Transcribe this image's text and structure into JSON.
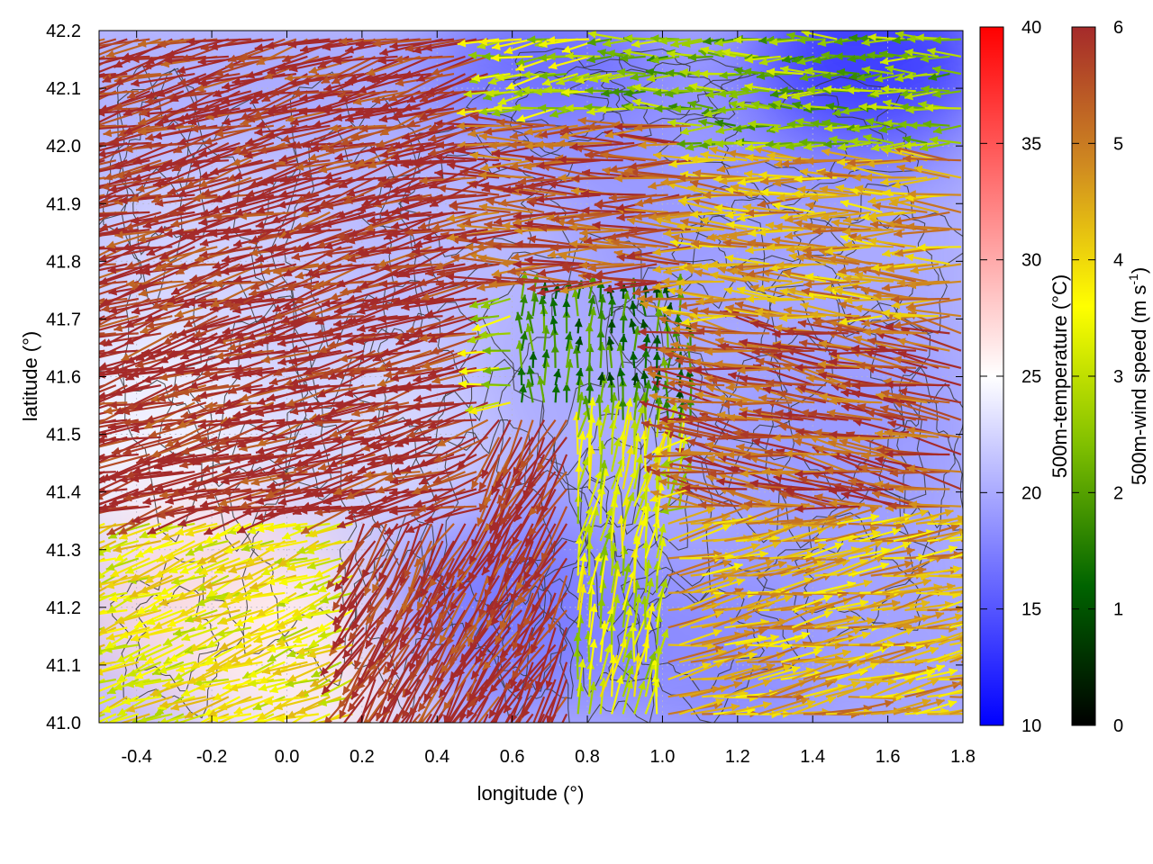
{
  "chart_data": {
    "type": "heatmap",
    "subtype": "vector-field-over-temperature-map",
    "xlabel": "longitude (°)",
    "ylabel": "latitude (°)",
    "xlim": [
      -0.5,
      1.8
    ],
    "ylim": [
      41.0,
      42.2
    ],
    "xticks": [
      "-0.4",
      "-0.2",
      "0.0",
      "0.2",
      "0.4",
      "0.6",
      "0.8",
      "1.0",
      "1.2",
      "1.4",
      "1.6",
      "1.8"
    ],
    "yticks": [
      "41.0",
      "41.1",
      "41.2",
      "41.3",
      "41.4",
      "41.5",
      "41.6",
      "41.7",
      "41.8",
      "41.9",
      "42.0",
      "42.1",
      "42.2"
    ],
    "grid": true,
    "temperature_colorbar": {
      "label": "500m-temperature (°C)",
      "range": [
        10,
        40
      ],
      "ticks": [
        "10",
        "15",
        "20",
        "25",
        "30",
        "35",
        "40"
      ],
      "colors": [
        "#0000ff",
        "#ffffff",
        "#ff0000"
      ]
    },
    "wind_colorbar": {
      "label_main": "500m-wind speed (m s",
      "label_sup": "-1",
      "label_end": ")",
      "range": [
        0,
        6
      ],
      "ticks": [
        "0",
        "1",
        "2",
        "3",
        "4",
        "5",
        "6"
      ],
      "colors": [
        "#000000",
        "#006400",
        "#7fbf00",
        "#ffff00",
        "#d08b20",
        "#a52a2a"
      ]
    },
    "temperature_regions": [
      {
        "lon": -0.5,
        "lat": 42.2,
        "temp": 20.5
      },
      {
        "lon": -0.2,
        "lat": 41.8,
        "temp": 22.5
      },
      {
        "lon": -0.4,
        "lat": 41.5,
        "temp": 24.5
      },
      {
        "lon": -0.2,
        "lat": 41.2,
        "temp": 27
      },
      {
        "lon": 0.1,
        "lat": 41.1,
        "temp": 26
      },
      {
        "lon": 0.3,
        "lat": 41.5,
        "temp": 23
      },
      {
        "lon": 0.6,
        "lat": 41.2,
        "temp": 17
      },
      {
        "lon": 0.8,
        "lat": 41.6,
        "temp": 20
      },
      {
        "lon": 0.7,
        "lat": 42.1,
        "temp": 16
      },
      {
        "lon": 1.0,
        "lat": 41.9,
        "temp": 19
      },
      {
        "lon": 1.55,
        "lat": 42.15,
        "temp": 13
      },
      {
        "lon": 1.5,
        "lat": 41.5,
        "temp": 19
      },
      {
        "lon": 1.2,
        "lat": 41.1,
        "temp": 18
      },
      {
        "lon": 1.7,
        "lat": 41.1,
        "temp": 19.5
      },
      {
        "lon": 0.4,
        "lat": 41.85,
        "temp": 21
      }
    ],
    "wind_regimes": [
      {
        "name": "",
        "lon_range": [
          -0.5,
          0.55
        ],
        "lat_range": [
          41.35,
          42.2
        ],
        "direction_deg": 195,
        "speed": 6.0
      },
      {
        "name": "",
        "lon_range": [
          0.2,
          0.75
        ],
        "lat_range": [
          41.0,
          41.55
        ],
        "direction_deg": 240,
        "speed": 6.0
      },
      {
        "name": "",
        "lon_range": [
          0.45,
          1.1
        ],
        "lat_range": [
          41.75,
          42.05
        ],
        "direction_deg": 180,
        "speed": 5.5
      },
      {
        "name": "",
        "lon_range": [
          1.05,
          1.8
        ],
        "lat_range": [
          41.7,
          42.0
        ],
        "direction_deg": 178,
        "speed": 4.6
      },
      {
        "name": "",
        "lon_range": [
          0.85,
          1.8
        ],
        "lat_range": [
          42.0,
          42.2
        ],
        "direction_deg": 180,
        "speed": 2.4
      },
      {
        "name": "",
        "lon_range": [
          0.6,
          1.1
        ],
        "lat_range": [
          41.5,
          41.78
        ],
        "direction_deg": 90,
        "speed": 1.5
      },
      {
        "name": "",
        "lon_range": [
          1.1,
          1.8
        ],
        "lat_range": [
          41.35,
          41.7
        ],
        "direction_deg": 170,
        "speed": 5.5
      },
      {
        "name": "",
        "lon_range": [
          1.0,
          1.8
        ],
        "lat_range": [
          41.0,
          41.35
        ],
        "direction_deg": 10,
        "speed": 4.5
      },
      {
        "name": "",
        "lon_range": [
          -0.5,
          0.2
        ],
        "lat_range": [
          41.0,
          41.35
        ],
        "direction_deg": 200,
        "speed": 3.6
      },
      {
        "name": "",
        "lon_range": [
          0.75,
          1.05
        ],
        "lat_range": [
          41.0,
          41.5
        ],
        "direction_deg": 80,
        "speed": 3.2
      }
    ],
    "contours": true
  }
}
